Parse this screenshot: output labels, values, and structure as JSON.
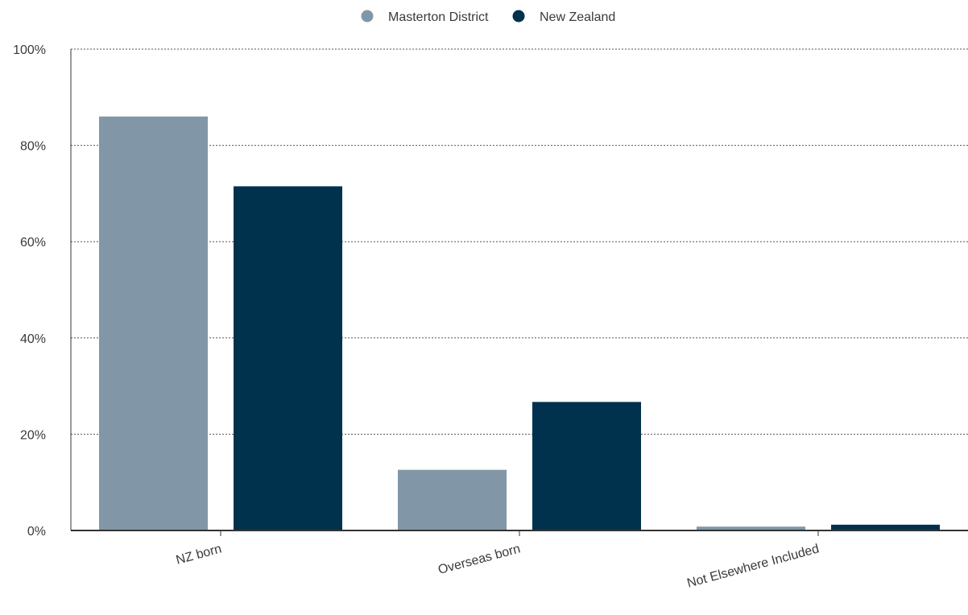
{
  "chart_data": {
    "type": "bar",
    "categories": [
      "NZ born",
      "Overseas born",
      "Not Elsewhere Included"
    ],
    "series": [
      {
        "name": "Masterton District",
        "values": [
          86.0,
          12.6,
          0.8
        ],
        "color": "#8197a7"
      },
      {
        "name": "New Zealand",
        "values": [
          71.5,
          26.7,
          1.2
        ],
        "color": "#00314d"
      }
    ],
    "y_ticks": [
      "0%",
      "20%",
      "40%",
      "60%",
      "80%",
      "100%"
    ],
    "ylim": [
      0,
      100
    ],
    "grid": true,
    "grid_style": "dotted",
    "legend_position": "top-center"
  }
}
